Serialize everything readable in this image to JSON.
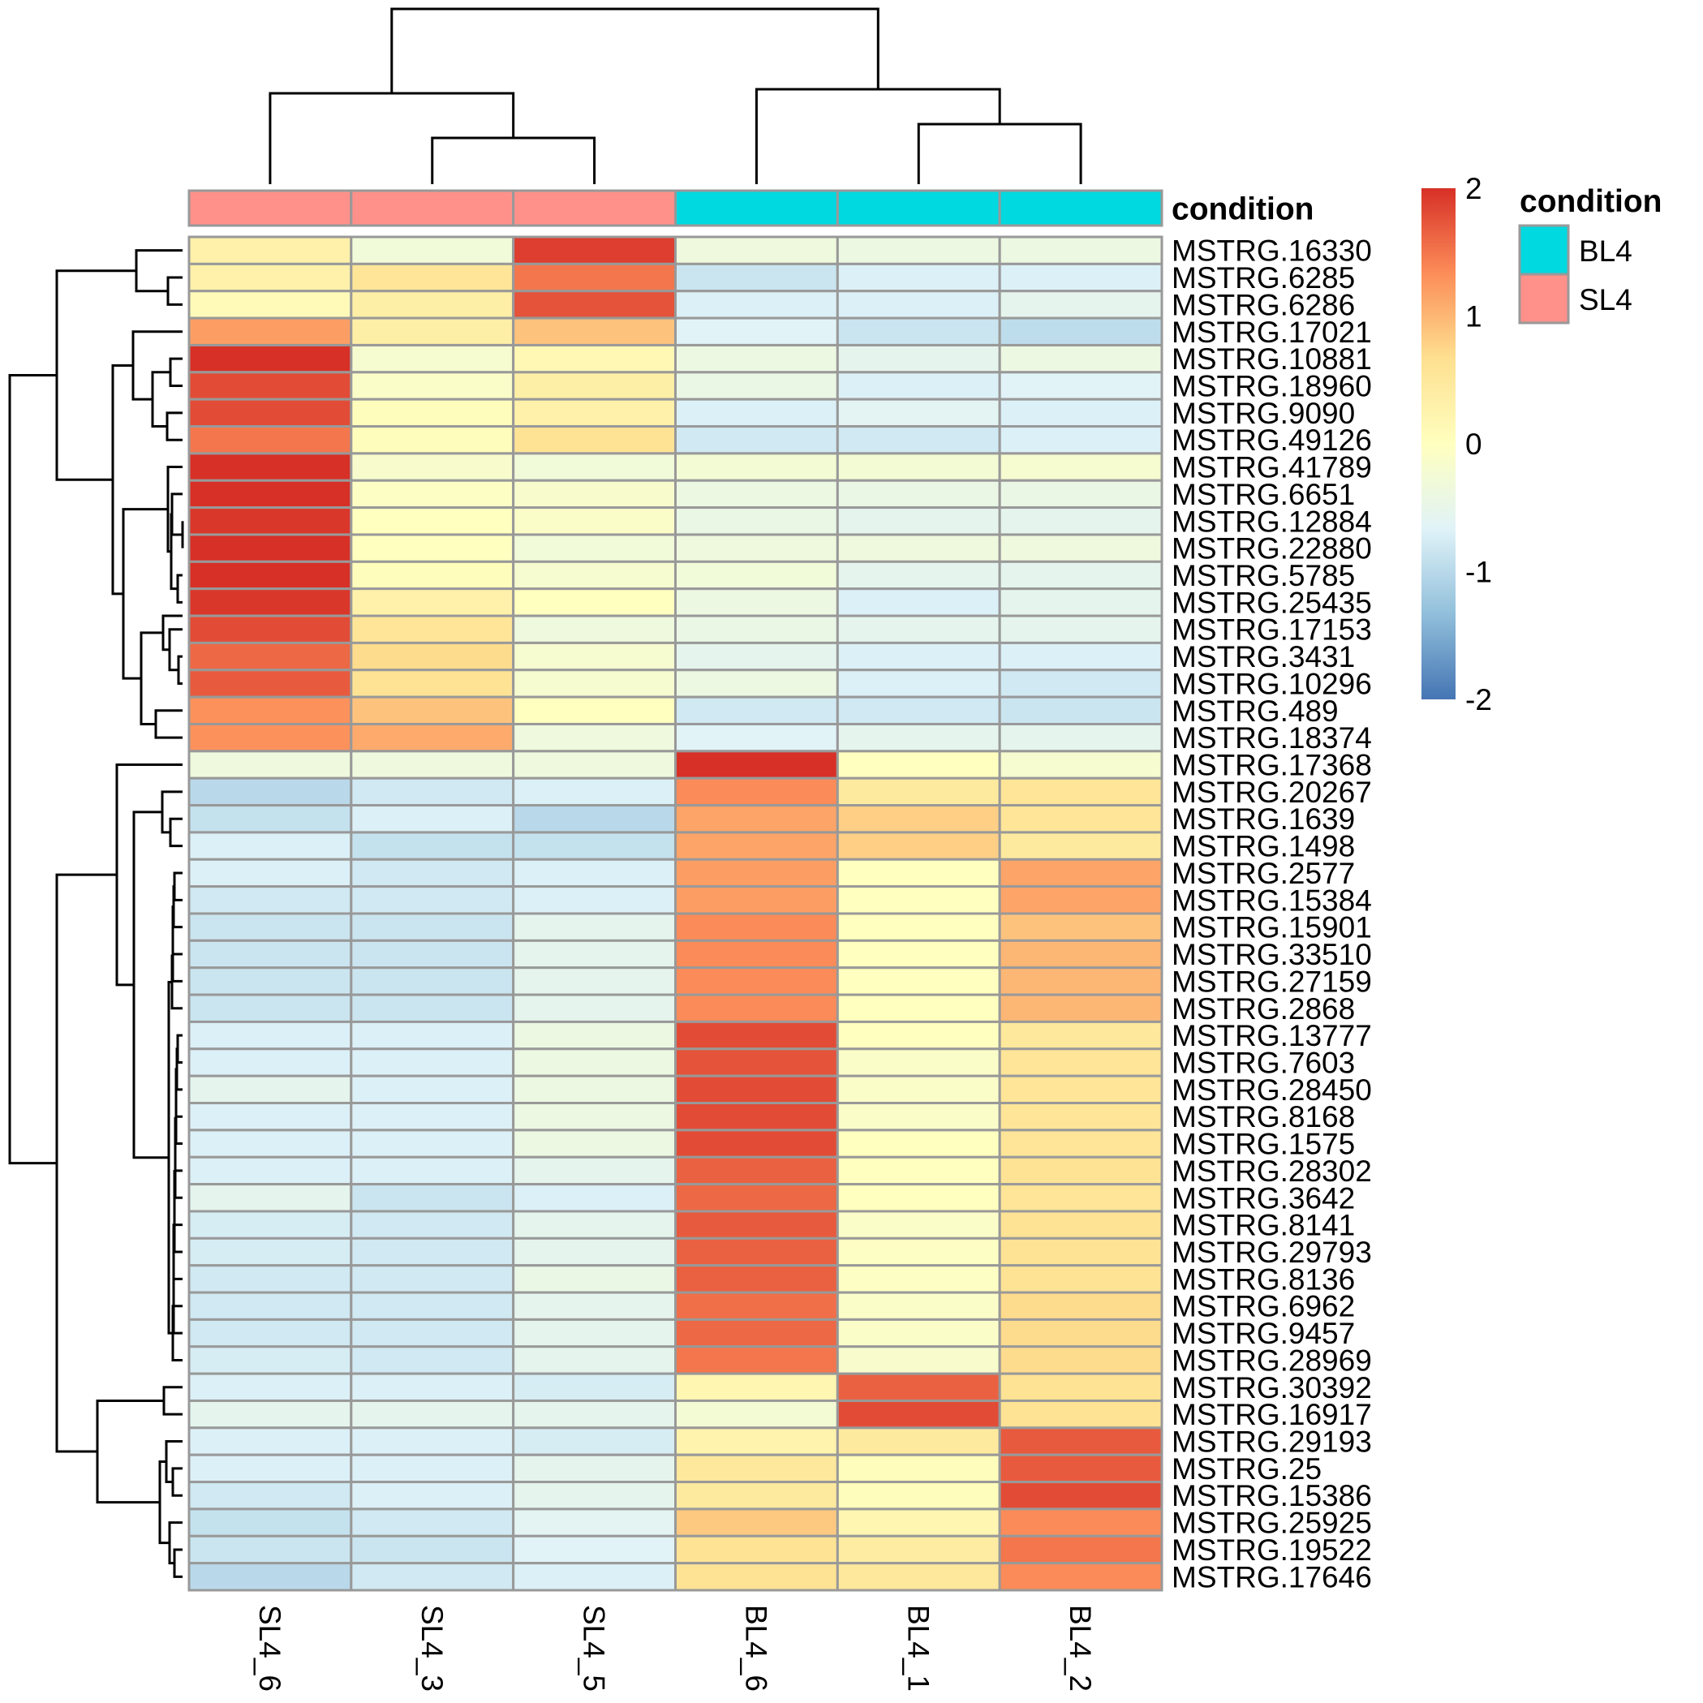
{
  "chart_data": {
    "type": "heatmap",
    "title": "",
    "columns": [
      "SL4_6",
      "SL4_3",
      "SL4_5",
      "BL4_6",
      "BL4_1",
      "BL4_2"
    ],
    "column_condition": [
      "SL4",
      "SL4",
      "SL4",
      "BL4",
      "BL4",
      "BL4"
    ],
    "rows": [
      "MSTRG.16330",
      "MSTRG.6285",
      "MSTRG.6286",
      "MSTRG.17021",
      "MSTRG.10881",
      "MSTRG.18960",
      "MSTRG.9090",
      "MSTRG.49126",
      "MSTRG.41789",
      "MSTRG.6651",
      "MSTRG.12884",
      "MSTRG.22880",
      "MSTRG.5785",
      "MSTRG.25435",
      "MSTRG.17153",
      "MSTRG.3431",
      "MSTRG.10296",
      "MSTRG.489",
      "MSTRG.18374",
      "MSTRG.17368",
      "MSTRG.20267",
      "MSTRG.1639",
      "MSTRG.1498",
      "MSTRG.2577",
      "MSTRG.15384",
      "MSTRG.15901",
      "MSTRG.33510",
      "MSTRG.27159",
      "MSTRG.2868",
      "MSTRG.13777",
      "MSTRG.7603",
      "MSTRG.28450",
      "MSTRG.8168",
      "MSTRG.1575",
      "MSTRG.28302",
      "MSTRG.3642",
      "MSTRG.8141",
      "MSTRG.29793",
      "MSTRG.8136",
      "MSTRG.6962",
      "MSTRG.9457",
      "MSTRG.28969",
      "MSTRG.30392",
      "MSTRG.16917",
      "MSTRG.29193",
      "MSTRG.25",
      "MSTRG.15386",
      "MSTRG.25925",
      "MSTRG.19522",
      "MSTRG.17646"
    ],
    "values": [
      [
        0.3,
        -0.3,
        1.9,
        -0.35,
        -0.4,
        -0.4
      ],
      [
        0.3,
        0.55,
        1.5,
        -0.85,
        -0.7,
        -0.7
      ],
      [
        0.1,
        0.35,
        1.75,
        -0.7,
        -0.7,
        -0.55
      ],
      [
        1.2,
        0.35,
        0.9,
        -0.65,
        -0.85,
        -0.95
      ],
      [
        2.0,
        -0.2,
        0.15,
        -0.4,
        -0.55,
        -0.4
      ],
      [
        1.8,
        -0.1,
        0.35,
        -0.45,
        -0.7,
        -0.65
      ],
      [
        1.8,
        0.05,
        0.3,
        -0.7,
        -0.6,
        -0.7
      ],
      [
        1.5,
        0.05,
        0.6,
        -0.8,
        -0.8,
        -0.7
      ],
      [
        2.0,
        -0.15,
        -0.3,
        -0.25,
        -0.25,
        -0.2
      ],
      [
        2.0,
        -0.05,
        -0.15,
        -0.4,
        -0.45,
        -0.45
      ],
      [
        1.95,
        0.0,
        -0.1,
        -0.45,
        -0.55,
        -0.55
      ],
      [
        2.0,
        0.0,
        -0.3,
        -0.35,
        -0.35,
        -0.35
      ],
      [
        2.0,
        0.05,
        -0.2,
        -0.3,
        -0.55,
        -0.55
      ],
      [
        1.95,
        0.3,
        0.0,
        -0.4,
        -0.7,
        -0.55
      ],
      [
        1.8,
        0.55,
        -0.35,
        -0.45,
        -0.55,
        -0.55
      ],
      [
        1.6,
        0.7,
        -0.2,
        -0.55,
        -0.7,
        -0.7
      ],
      [
        1.7,
        0.6,
        -0.2,
        -0.4,
        -0.7,
        -0.8
      ],
      [
        1.3,
        0.9,
        0.0,
        -0.8,
        -0.8,
        -0.85
      ],
      [
        1.3,
        1.1,
        -0.35,
        -0.65,
        -0.55,
        -0.55
      ],
      [
        -0.35,
        -0.35,
        -0.35,
        2.0,
        0.0,
        -0.2
      ],
      [
        -1.0,
        -0.8,
        -0.7,
        1.35,
        0.45,
        0.55
      ],
      [
        -0.9,
        -0.7,
        -1.0,
        1.15,
        0.8,
        0.55
      ],
      [
        -0.7,
        -0.9,
        -0.9,
        1.15,
        0.8,
        0.45
      ],
      [
        -0.7,
        -0.8,
        -0.7,
        1.2,
        0.0,
        1.15
      ],
      [
        -0.8,
        -0.8,
        -0.7,
        1.2,
        0.0,
        1.15
      ],
      [
        -0.85,
        -0.85,
        -0.55,
        1.35,
        0.0,
        0.9
      ],
      [
        -0.85,
        -0.85,
        -0.55,
        1.35,
        0.0,
        1.0
      ],
      [
        -0.85,
        -0.85,
        -0.55,
        1.35,
        0.0,
        1.0
      ],
      [
        -0.85,
        -0.85,
        -0.55,
        1.35,
        0.0,
        1.0
      ],
      [
        -0.7,
        -0.7,
        -0.4,
        1.8,
        0.0,
        0.5
      ],
      [
        -0.7,
        -0.7,
        -0.4,
        1.75,
        -0.1,
        0.55
      ],
      [
        -0.55,
        -0.7,
        -0.4,
        1.8,
        -0.1,
        0.55
      ],
      [
        -0.7,
        -0.7,
        -0.4,
        1.8,
        -0.1,
        0.55
      ],
      [
        -0.7,
        -0.7,
        -0.4,
        1.8,
        0.0,
        0.55
      ],
      [
        -0.7,
        -0.7,
        -0.55,
        1.65,
        0.0,
        0.6
      ],
      [
        -0.55,
        -0.85,
        -0.7,
        1.6,
        0.0,
        0.55
      ],
      [
        -0.75,
        -0.8,
        -0.55,
        1.7,
        -0.1,
        0.6
      ],
      [
        -0.75,
        -0.8,
        -0.55,
        1.65,
        -0.05,
        0.6
      ],
      [
        -0.8,
        -0.8,
        -0.45,
        1.65,
        -0.05,
        0.6
      ],
      [
        -0.8,
        -0.8,
        -0.55,
        1.55,
        -0.1,
        0.7
      ],
      [
        -0.8,
        -0.8,
        -0.55,
        1.6,
        -0.1,
        0.7
      ],
      [
        -0.75,
        -0.8,
        -0.55,
        1.5,
        -0.15,
        0.7
      ],
      [
        -0.7,
        -0.7,
        -0.75,
        0.2,
        1.65,
        0.6
      ],
      [
        -0.55,
        -0.55,
        -0.55,
        -0.25,
        1.8,
        0.6
      ],
      [
        -0.7,
        -0.7,
        -0.75,
        0.25,
        0.45,
        1.7
      ],
      [
        -0.7,
        -0.7,
        -0.55,
        0.5,
        0.05,
        1.7
      ],
      [
        -0.8,
        -0.7,
        -0.55,
        0.45,
        0.05,
        1.8
      ],
      [
        -0.9,
        -0.8,
        -0.6,
        0.85,
        0.2,
        1.35
      ],
      [
        -0.85,
        -0.85,
        -0.65,
        0.6,
        0.4,
        1.5
      ],
      [
        -1.0,
        -0.8,
        -0.7,
        0.6,
        0.5,
        1.35
      ]
    ],
    "color_scale": {
      "type": "continuous",
      "range": [
        -2,
        2
      ],
      "ticks": [
        "2",
        "1",
        "0",
        "-1",
        "-2"
      ],
      "tick_values": [
        2,
        1,
        0,
        -1,
        -2
      ],
      "stops": [
        "#4575B4",
        "#91BFDB",
        "#E0F3F8",
        "#FFFFBF",
        "#FEE090",
        "#FC8D59",
        "#D73027"
      ]
    },
    "annotation": {
      "title": "condition",
      "levels": [
        {
          "label": "BL4",
          "color": "#00D9E0"
        },
        {
          "label": "SL4",
          "color": "#FF918A"
        }
      ]
    },
    "row_dendrogram": true,
    "column_dendrogram": true,
    "cell_border_color": "#999999"
  }
}
